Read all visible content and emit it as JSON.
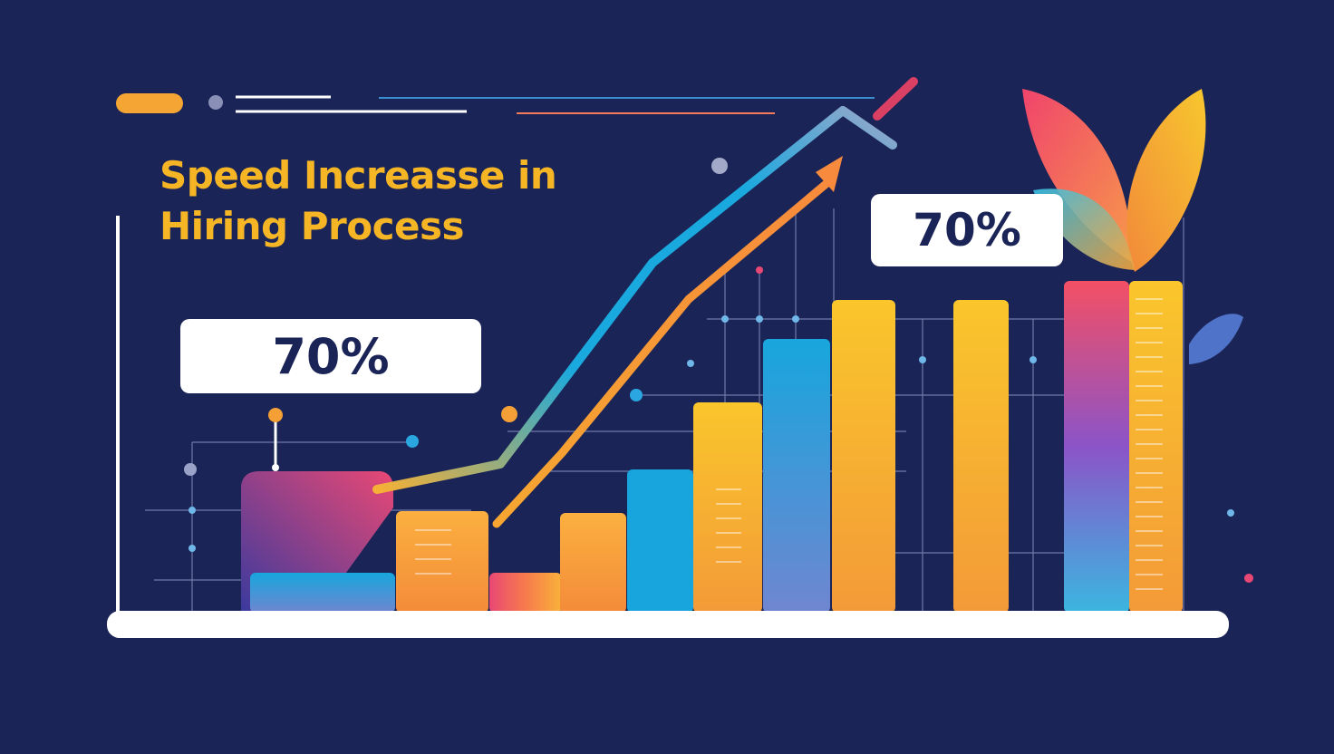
{
  "title_line1": "Speed Increasse in",
  "title_line2": "Hiring Process",
  "callouts": [
    "70%",
    "70%"
  ],
  "colors": {
    "background": "#1a2456",
    "title": "#f5b525",
    "orange": "#f7a23c",
    "yellow": "#f8c12c",
    "blue": "#1aa6dc",
    "pink": "#e94874",
    "white": "#ffffff"
  },
  "chart_data": {
    "type": "bar",
    "title": "Speed Increasse in Hiring Process",
    "annotations": [
      "70%",
      "70%"
    ],
    "values": [
      40,
      56,
      23,
      56,
      90,
      128,
      170,
      196,
      230,
      230,
      280
    ],
    "trend": "increasing"
  }
}
